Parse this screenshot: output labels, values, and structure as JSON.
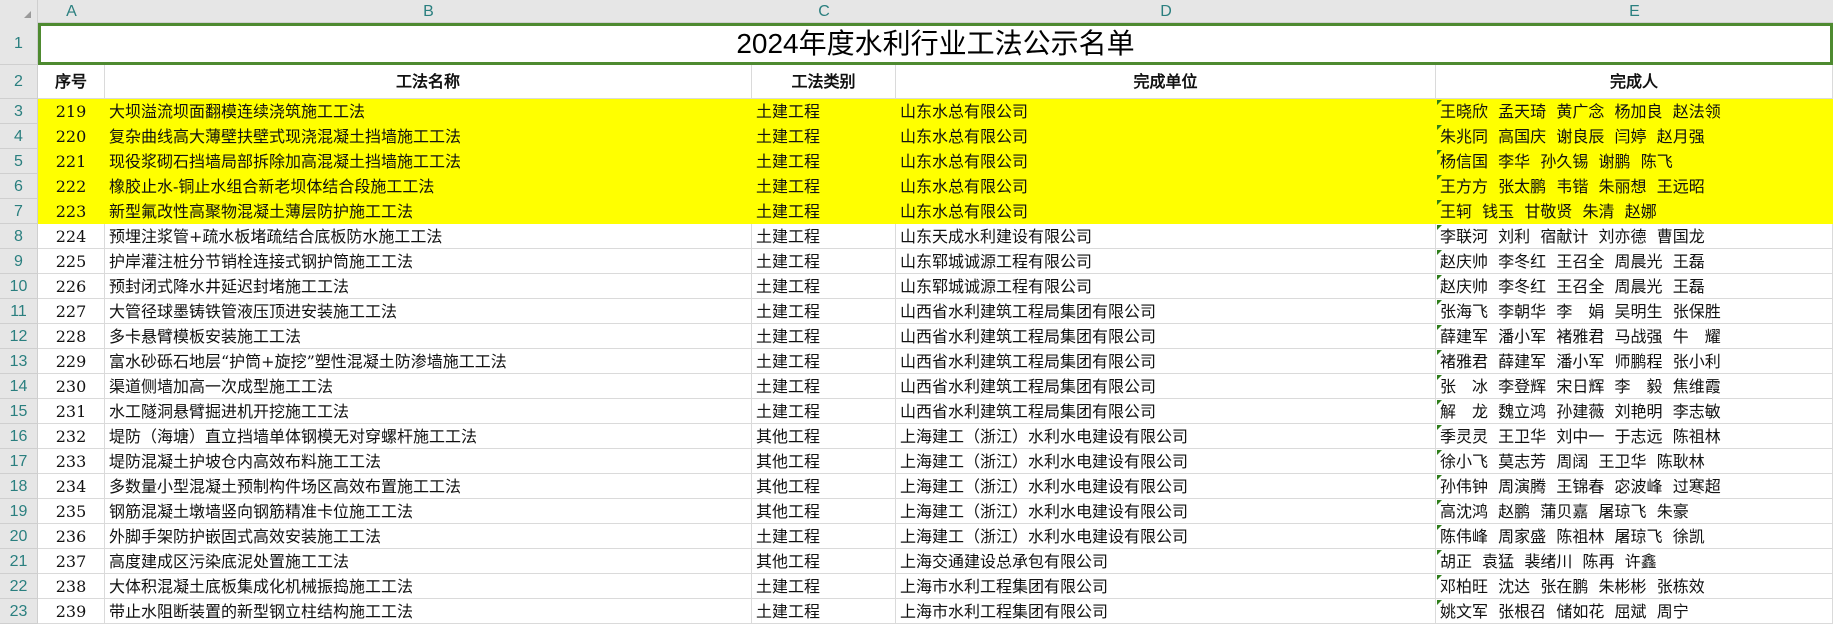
{
  "sheet": {
    "columns": [
      "A",
      "B",
      "C",
      "D",
      "E"
    ],
    "title": "2024年度水利行业工法公示名单",
    "headers": {
      "no": "序号",
      "name": "工法名称",
      "category": "工法类别",
      "unit": "完成单位",
      "people": "完成人"
    },
    "highlight_color": "#ffff00",
    "selection_color": "#4e8a30",
    "rows": [
      {
        "row": "3",
        "no": "219",
        "name": "大坝溢流坝面翻模连续浇筑施工工法",
        "category": "土建工程",
        "unit": "山东水总有限公司",
        "people": "王晓欣  孟天琦  黄广念  杨加良  赵法领",
        "highlight": true
      },
      {
        "row": "4",
        "no": "220",
        "name": "复杂曲线高大薄壁扶壁式现浇混凝土挡墙施工工法",
        "category": "土建工程",
        "unit": "山东水总有限公司",
        "people": "朱兆同  高国庆  谢良辰  闫婷  赵月强",
        "highlight": true
      },
      {
        "row": "5",
        "no": "221",
        "name": "现役浆砌石挡墙局部拆除加高混凝土挡墙施工工法",
        "category": "土建工程",
        "unit": "山东水总有限公司",
        "people": "杨信国  李华  孙久锡  谢鹏  陈飞",
        "highlight": true
      },
      {
        "row": "6",
        "no": "222",
        "name": "橡胶止水-铜止水组合新老坝体结合段施工工法",
        "category": "土建工程",
        "unit": "山东水总有限公司",
        "people": "王方方  张太鹏  韦锴  朱丽想  王远昭",
        "highlight": true
      },
      {
        "row": "7",
        "no": "223",
        "name": "新型氟改性高聚物混凝土薄层防护施工工法",
        "category": "土建工程",
        "unit": "山东水总有限公司",
        "people": "王轲  钱玉  甘敬贤  朱清  赵娜",
        "highlight": true
      },
      {
        "row": "8",
        "no": "224",
        "name": "预埋注浆管+疏水板堵疏结合底板防水施工工法",
        "category": "土建工程",
        "unit": "山东天成水利建设有限公司",
        "people": "李联河  刘利  宿献计  刘亦德  曹国龙",
        "highlight": false
      },
      {
        "row": "9",
        "no": "225",
        "name": "护岸灌注桩分节销栓连接式钢护筒施工工法",
        "category": "土建工程",
        "unit": "山东郓城诚源工程有限公司",
        "people": "赵庆帅  李冬红  王召全  周晨光  王磊",
        "highlight": false
      },
      {
        "row": "10",
        "no": "226",
        "name": "预封闭式降水井延迟封堵施工工法",
        "category": "土建工程",
        "unit": "山东郓城诚源工程有限公司",
        "people": "赵庆帅  李冬红  王召全  周晨光  王磊",
        "highlight": false
      },
      {
        "row": "11",
        "no": "227",
        "name": "大管径球墨铸铁管液压顶进安装施工工法",
        "category": "土建工程",
        "unit": "山西省水利建筑工程局集团有限公司",
        "people": "张海飞  李朝华  李　娟  吴明生  张保胜",
        "highlight": false
      },
      {
        "row": "12",
        "no": "228",
        "name": "多卡悬臂模板安装施工工法",
        "category": "土建工程",
        "unit": "山西省水利建筑工程局集团有限公司",
        "people": "薛建军  潘小军  褚雅君  马战强  牛　耀",
        "highlight": false
      },
      {
        "row": "13",
        "no": "229",
        "name": "富水砂砾石地层“护筒+旋挖”塑性混凝土防渗墙施工工法",
        "category": "土建工程",
        "unit": "山西省水利建筑工程局集团有限公司",
        "people": "褚雅君  薛建军  潘小军  师鹏程  张小利",
        "highlight": false
      },
      {
        "row": "14",
        "no": "230",
        "name": "渠道侧墙加高一次成型施工工法",
        "category": "土建工程",
        "unit": "山西省水利建筑工程局集团有限公司",
        "people": "张　冰  李登辉  宋日辉  李　毅  焦维霞",
        "highlight": false
      },
      {
        "row": "15",
        "no": "231",
        "name": "水工隧洞悬臂掘进机开挖施工工法",
        "category": "土建工程",
        "unit": "山西省水利建筑工程局集团有限公司",
        "people": "解　龙  魏立鸿  孙建薇  刘艳明  李志敏",
        "highlight": false
      },
      {
        "row": "16",
        "no": "232",
        "name": "堤防（海塘）直立挡墙单体钢模无对穿螺杆施工工法",
        "category": "其他工程",
        "unit": "上海建工（浙江）水利水电建设有限公司",
        "people": "季灵灵  王卫华  刘中一  于志远  陈祖林",
        "highlight": false
      },
      {
        "row": "17",
        "no": "233",
        "name": "堤防混凝土护坡仓内高效布料施工工法",
        "category": "其他工程",
        "unit": "上海建工（浙江）水利水电建设有限公司",
        "people": "徐小飞  莫志芳  周阔  王卫华  陈耿林",
        "highlight": false
      },
      {
        "row": "18",
        "no": "234",
        "name": "多数量小型混凝土预制构件场区高效布置施工工法",
        "category": "其他工程",
        "unit": "上海建工（浙江）水利水电建设有限公司",
        "people": "孙伟钟  周演腾  王锦春  宓波峰  过寒超",
        "highlight": false
      },
      {
        "row": "19",
        "no": "235",
        "name": "钢筋混凝土墩墙竖向钢筋精准卡位施工工法",
        "category": "其他工程",
        "unit": "上海建工（浙江）水利水电建设有限公司",
        "people": "高沈鸿  赵鹏  蒲贝嘉  屠琼飞  朱豪",
        "highlight": false
      },
      {
        "row": "20",
        "no": "236",
        "name": "外脚手架防护嵌固式高效安装施工工法",
        "category": "土建工程",
        "unit": "上海建工（浙江）水利水电建设有限公司",
        "people": "陈伟峰  周家盛  陈祖林  屠琼飞  徐凯",
        "highlight": false
      },
      {
        "row": "21",
        "no": "237",
        "name": "高度建成区污染底泥处置施工工法",
        "category": "其他工程",
        "unit": "上海交通建设总承包有限公司",
        "people": "胡正  袁猛  裴绪川  陈再  许鑫",
        "highlight": false
      },
      {
        "row": "22",
        "no": "238",
        "name": "大体积混凝土底板集成化机械振捣施工工法",
        "category": "土建工程",
        "unit": "上海市水利工程集团有限公司",
        "people": "邓柏旺  沈达  张在鹏  朱彬彬  张栋效",
        "highlight": false
      },
      {
        "row": "23",
        "no": "239",
        "name": "带止水阻断装置的新型钢立柱结构施工工法",
        "category": "土建工程",
        "unit": "上海市水利工程集团有限公司",
        "people": "姚文军  张根召  储如花  屈斌  周宁",
        "highlight": false
      }
    ]
  }
}
